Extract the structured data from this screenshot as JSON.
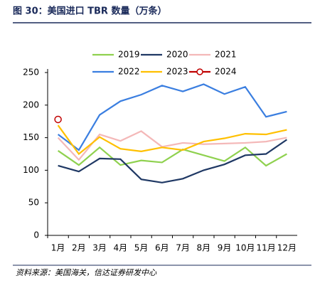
{
  "chart_data": {
    "type": "line",
    "title": "图 30：美国进口 TBR 数量（万条）",
    "source": "资料来源：美国海关，信达证券研发中心",
    "categories": [
      "1月",
      "2月",
      "3月",
      "4月",
      "5月",
      "6月",
      "7月",
      "8月",
      "9月",
      "10月",
      "11月",
      "12月"
    ],
    "series": [
      {
        "name": "2019",
        "color": "#8fd14f",
        "values": [
          130,
          108,
          135,
          108,
          115,
          112,
          132,
          123,
          114,
          135,
          107,
          125
        ]
      },
      {
        "name": "2020",
        "color": "#1f3864",
        "values": [
          107,
          98,
          118,
          117,
          86,
          81,
          87,
          100,
          109,
          123,
          125,
          147
        ]
      },
      {
        "name": "2021",
        "color": "#f4b8b8",
        "values": [
          150,
          116,
          155,
          145,
          160,
          136,
          142,
          140,
          141,
          142,
          144,
          150
        ]
      },
      {
        "name": "2022",
        "color": "#3a7ee0",
        "values": [
          155,
          131,
          185,
          206,
          216,
          230,
          221,
          232,
          217,
          228,
          182,
          190
        ]
      },
      {
        "name": "2023",
        "color": "#ffc000",
        "values": [
          169,
          125,
          151,
          133,
          129,
          135,
          131,
          144,
          149,
          156,
          155,
          162
        ]
      },
      {
        "name": "2024",
        "color": "#c00000",
        "marker": "circle",
        "values": [
          178,
          null,
          null,
          null,
          null,
          null,
          null,
          null,
          null,
          null,
          null,
          null
        ]
      }
    ],
    "ylim": [
      0,
      250
    ],
    "yticks": [
      0,
      50,
      100,
      150,
      200,
      250
    ],
    "grid": false
  }
}
